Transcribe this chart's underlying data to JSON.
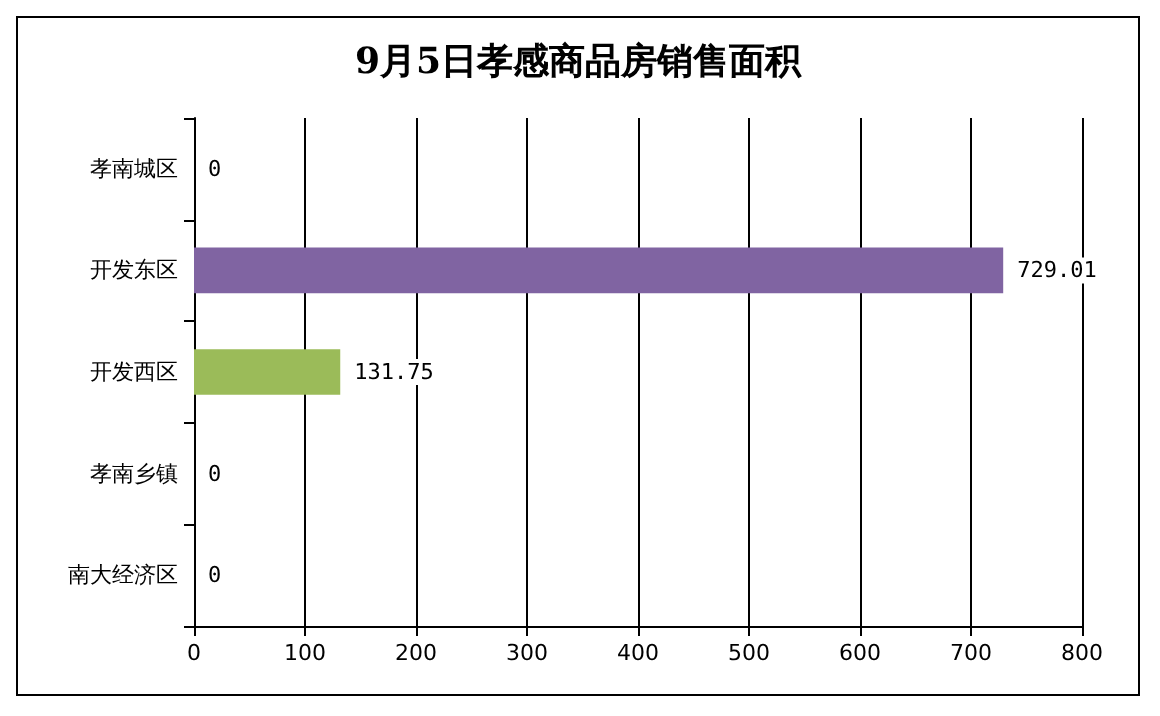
{
  "chart_data": {
    "type": "bar",
    "orientation": "horizontal",
    "title": "9月5日孝感商品房销售面积",
    "categories": [
      "孝南城区",
      "开发东区",
      "开发西区",
      "孝南乡镇",
      "南大经济区"
    ],
    "values": [
      0,
      729.01,
      131.75,
      0,
      0
    ],
    "colors": [
      "#4f81bd",
      "#8064a2",
      "#9bbb59",
      "#c0504d",
      "#4bacc6"
    ],
    "xlim": [
      0,
      800
    ],
    "xticks": [
      0,
      100,
      200,
      300,
      400,
      500,
      600,
      700,
      800
    ],
    "grid": "x",
    "data_labels": true
  }
}
